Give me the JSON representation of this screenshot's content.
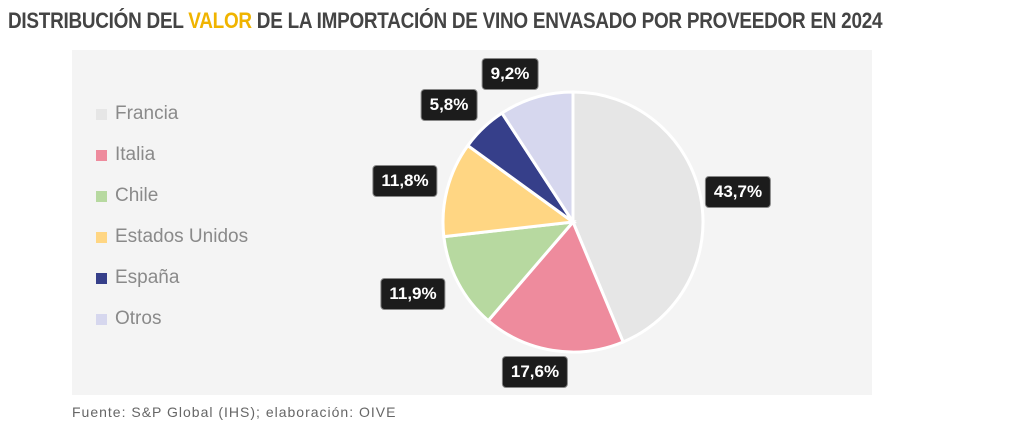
{
  "chart_data": {
    "type": "pie",
    "title_parts": [
      "DISTRIBUCIÓN DEL ",
      "VALOR",
      " DE LA IMPORTACIÓN DE VINO ENVASADO POR PROVEEDOR EN 2024"
    ],
    "categories": [
      "Francia",
      "Italia",
      "Chile",
      "Estados Unidos",
      "España",
      "Otros"
    ],
    "values": [
      43.7,
      17.6,
      11.9,
      11.8,
      5.8,
      9.2
    ],
    "labels": [
      "43,7%",
      "17,6%",
      "11,9%",
      "11,8%",
      "5,8%",
      "9,2%"
    ],
    "colors": [
      "#e6e6e6",
      "#ee8b9d",
      "#b7d9a0",
      "#ffd683",
      "#363f8a",
      "#d6d7ee"
    ],
    "legend_placement": "left"
  },
  "source": "Fuente:  S&P Global  (IHS); elaboración:  OIVE"
}
